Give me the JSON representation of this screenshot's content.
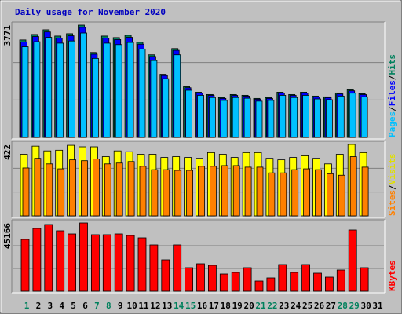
{
  "chart_data": {
    "type": "bar",
    "title": "Daily usage for November 2020",
    "categories": [
      "1",
      "2",
      "3",
      "4",
      "5",
      "6",
      "7",
      "8",
      "9",
      "10",
      "11",
      "12",
      "13",
      "14",
      "15",
      "16",
      "17",
      "18",
      "19",
      "20",
      "21",
      "22",
      "23",
      "24",
      "25",
      "26",
      "27",
      "28",
      "29",
      "30",
      "31"
    ],
    "weekend_days": [
      "1",
      "7",
      "8",
      "14",
      "15",
      "21",
      "22",
      "28",
      "29"
    ],
    "legend_separator": "/",
    "panels": [
      {
        "ylim": [
          0,
          3771
        ],
        "yticks": [
          3771
        ],
        "series": [
          {
            "name": "Hits",
            "color": "#00805c",
            "values": [
              3273,
              3457,
              3614,
              3404,
              3483,
              3771,
              2854,
              3404,
              3352,
              3430,
              3195,
              2776,
              2121,
              2985,
              1702,
              1519,
              1440,
              1336,
              1440,
              1414,
              1309,
              1336,
              1519,
              1440,
              1519,
              1388,
              1362,
              1493,
              1597,
              1466,
              0
            ]
          },
          {
            "name": "Files",
            "color": "#0000ff",
            "values": [
              3208,
              3388,
              3542,
              3336,
              3413,
              3696,
              2797,
              3336,
              3285,
              3361,
              3131,
              2720,
              2079,
              2925,
              1668,
              1489,
              1411,
              1309,
              1411,
              1386,
              1283,
              1309,
              1489,
              1411,
              1489,
              1360,
              1335,
              1463,
              1565,
              1437,
              0
            ]
          },
          {
            "name": "Pages",
            "color": "#00c0ff",
            "values": [
              3044,
              3215,
              3361,
              3166,
              3239,
              3507,
              2654,
              3166,
              3117,
              3190,
              2971,
              2582,
              1973,
              2776,
              1583,
              1413,
              1339,
              1242,
              1339,
              1315,
              1217,
              1242,
              1413,
              1339,
              1413,
              1291,
              1267,
              1388,
              1485,
              1363,
              0
            ]
          }
        ],
        "legend_order": [
          2,
          1,
          0
        ]
      },
      {
        "ylim": [
          0,
          422
        ],
        "yticks": [
          422
        ],
        "series": [
          {
            "name": "Visits",
            "color": "#ffff00",
            "values": [
              364,
              412,
              384,
              388,
              417,
              408,
              408,
              350,
              384,
              379,
              364,
              364,
              345,
              350,
              345,
              340,
              374,
              364,
              345,
              374,
              374,
              340,
              331,
              345,
              355,
              340,
              307,
              364,
              422,
              374,
              0
            ]
          },
          {
            "name": "Sites",
            "color": "#ff8000",
            "values": [
              283,
              340,
              307,
              278,
              331,
              326,
              336,
              307,
              312,
              321,
              293,
              273,
              273,
              269,
              269,
              293,
              293,
              297,
              297,
              288,
              288,
              254,
              254,
              273,
              278,
              273,
              249,
              240,
              350,
              288,
              0
            ]
          }
        ],
        "legend_order": [
          1,
          0
        ]
      },
      {
        "ylim": [
          0,
          45166
        ],
        "yticks": [
          45166
        ],
        "series": [
          {
            "name": "KBytes",
            "color": "#ff0000",
            "values": [
              34264,
              41532,
              44128,
              39975,
              37898,
              45166,
              37379,
              37379,
              37898,
              36860,
              35302,
              30630,
              20766,
              30630,
              15574,
              18170,
              17132,
              11421,
              12460,
              15574,
              6749,
              8826,
              17651,
              12460,
              17651,
              11940,
              9345,
              14017,
              40494,
              15574,
              0
            ]
          }
        ],
        "legend_order": [
          0
        ]
      }
    ]
  }
}
